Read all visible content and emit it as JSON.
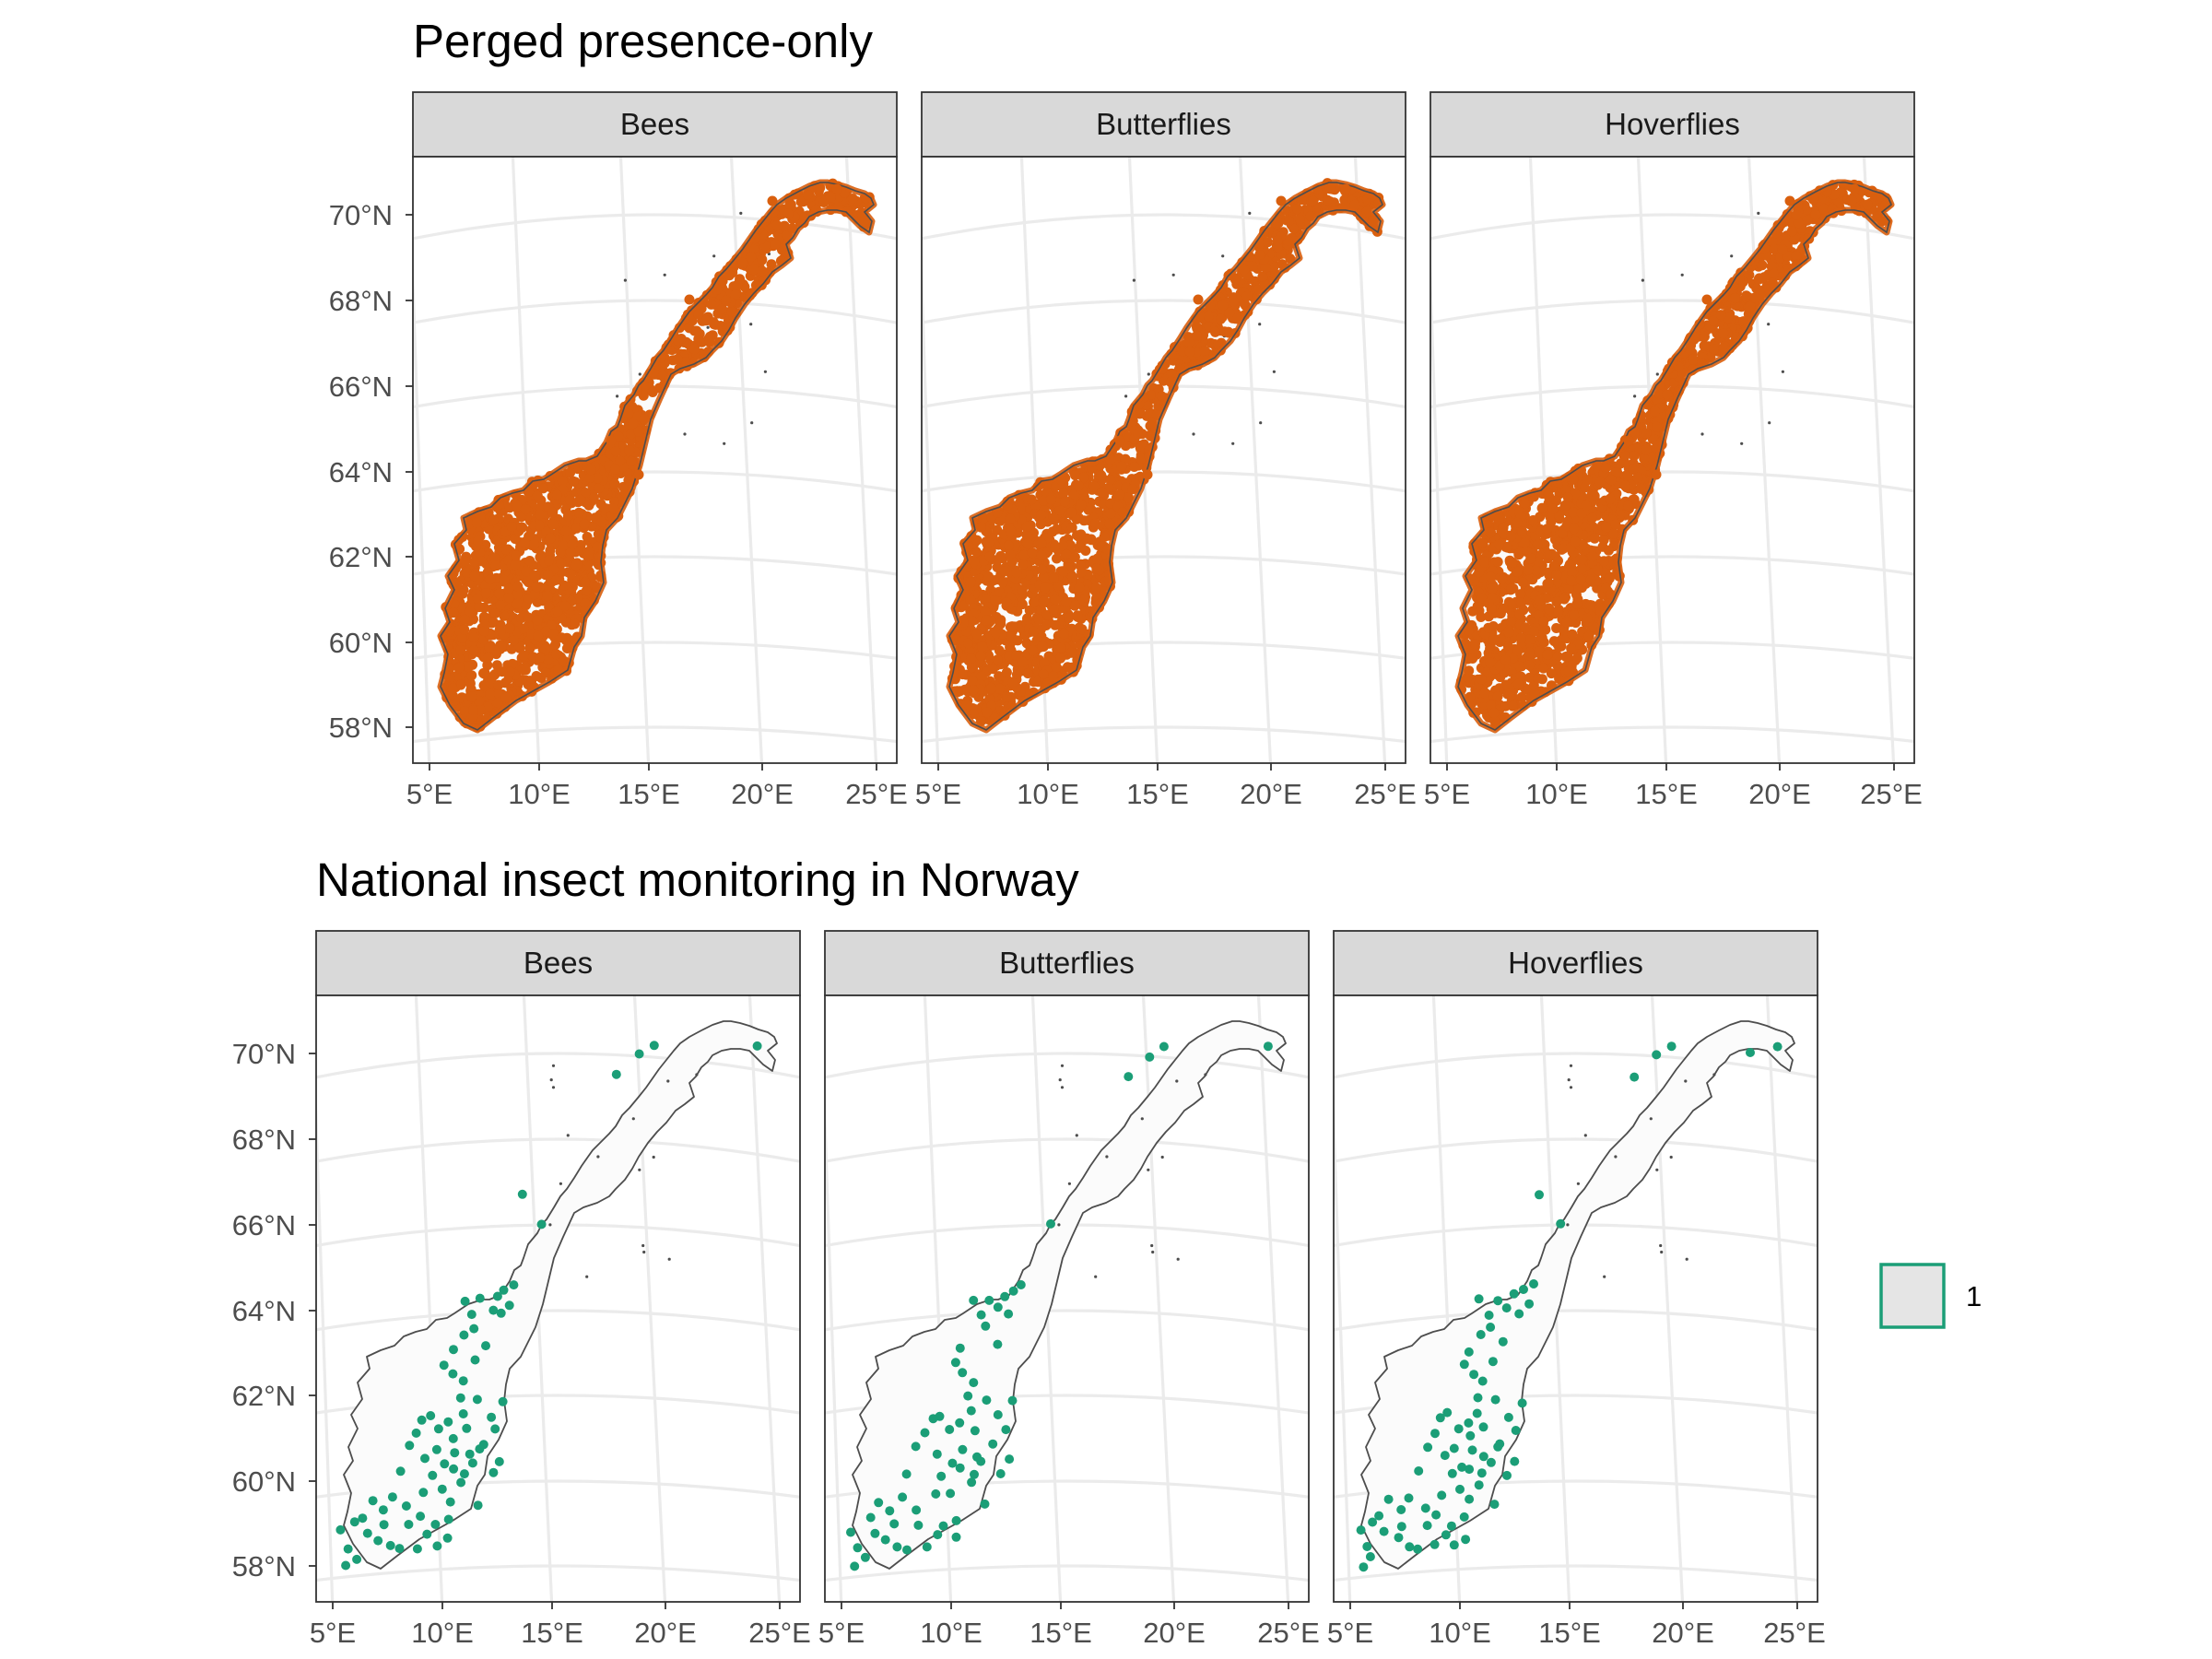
{
  "figure": {
    "rows": [
      {
        "title": "Perged presence-only",
        "mode": "presence",
        "point_color": "#d95f0e",
        "panels": [
          {
            "label": "Bees"
          },
          {
            "label": "Butterflies"
          },
          {
            "label": "Hoverflies"
          }
        ]
      },
      {
        "title": "National insect monitoring in Norway",
        "mode": "monitoring",
        "point_color": "#1b9e77",
        "panels": [
          {
            "label": "Bees"
          },
          {
            "label": "Butterflies"
          },
          {
            "label": "Hoverflies"
          }
        ]
      }
    ],
    "lat_ticks": [
      "70°N",
      "68°N",
      "66°N",
      "64°N",
      "62°N",
      "60°N",
      "58°N"
    ],
    "lon_ticks": [
      "5°E",
      "10°E",
      "15°E",
      "20°E",
      "25°E"
    ],
    "legend": {
      "label": "1",
      "fill": "#e5e5e5",
      "border": "#1b9e77"
    },
    "land_fill": "#fbfbfb",
    "outline_color": "#4d4d4d"
  }
}
